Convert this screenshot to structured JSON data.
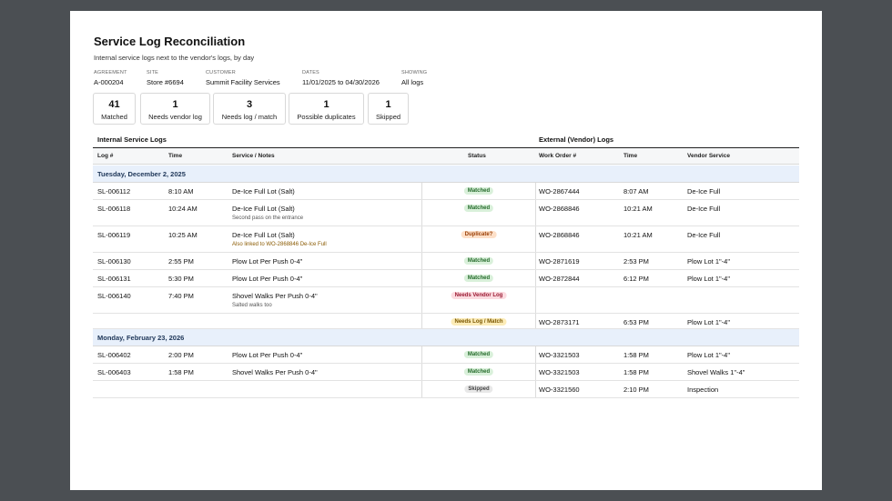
{
  "page": {
    "title": "Service Log Reconciliation",
    "subtitle": "Internal service logs next to the vendor's logs, by day"
  },
  "meta": [
    {
      "label": "Agreement",
      "value": "A-000204"
    },
    {
      "label": "Site",
      "value": "Store #6694"
    },
    {
      "label": "Customer",
      "value": "Summit Facility Services"
    },
    {
      "label": "Dates",
      "value": "11/01/2025 to 04/30/2026"
    },
    {
      "label": "Showing",
      "value": "All logs"
    }
  ],
  "summary": [
    {
      "count": "41",
      "label": "Matched"
    },
    {
      "count": "1",
      "label": "Needs vendor log"
    },
    {
      "count": "3",
      "label": "Needs log / match"
    },
    {
      "count": "1",
      "label": "Possible duplicates"
    },
    {
      "count": "1",
      "label": "Skipped"
    }
  ],
  "sections": {
    "internal": "Internal Service Logs",
    "external": "External (Vendor) Logs"
  },
  "columns": [
    "Log #",
    "Time",
    "Service / Notes",
    "Status",
    "Work Order #",
    "Time",
    "Vendor Service"
  ],
  "days": [
    {
      "label": "Tuesday, December 2, 2025",
      "rows": [
        {
          "log": "SL-006112",
          "time": "8:10 AM",
          "service": "De-Ice Full Lot (Salt)",
          "note": "",
          "status": "Matched",
          "wo": "WO-2867444",
          "vtime": "8:07 AM",
          "vservice": "De-Ice Full"
        },
        {
          "log": "SL-006118",
          "time": "10:24 AM",
          "service": "De-Ice Full Lot (Salt)",
          "note": "Second pass on the entrance",
          "status": "Matched",
          "wo": "WO-2868846",
          "vtime": "10:21 AM",
          "vservice": "De-Ice Full"
        },
        {
          "log": "SL-006119",
          "time": "10:25 AM",
          "service": "De-Ice Full Lot (Salt)",
          "note": "Also linked to WO-2868846 De-Ice Full",
          "status": "Duplicate?",
          "wo": "WO-2868846",
          "vtime": "10:21 AM",
          "vservice": "De-Ice Full"
        },
        {
          "log": "SL-006130",
          "time": "2:55 PM",
          "service": "Plow Lot Per Push 0-4\"",
          "note": "",
          "status": "Matched",
          "wo": "WO-2871619",
          "vtime": "2:53 PM",
          "vservice": "Plow Lot 1\"-4\""
        },
        {
          "log": "SL-006131",
          "time": "5:30 PM",
          "service": "Plow Lot Per Push 0-4\"",
          "note": "",
          "status": "Matched",
          "wo": "WO-2872844",
          "vtime": "6:12 PM",
          "vservice": "Plow Lot 1\"-4\""
        },
        {
          "log": "SL-006140",
          "time": "7:40 PM",
          "service": "Shovel Walks Per Push 0-4\"",
          "note": "Salted walks too",
          "status": "Needs Vendor Log",
          "wo": "",
          "vtime": "",
          "vservice": ""
        },
        {
          "log": "",
          "time": "",
          "service": "",
          "note": "",
          "status": "Needs Log / Match",
          "wo": "WO-2873171",
          "vtime": "6:53 PM",
          "vservice": "Plow Lot 1\"-4\""
        }
      ]
    },
    {
      "label": "Monday, February 23, 2026",
      "rows": [
        {
          "log": "SL-006402",
          "time": "2:00 PM",
          "service": "Plow Lot Per Push 0-4\"",
          "note": "",
          "status": "Matched",
          "wo": "WO-3321503",
          "vtime": "1:58 PM",
          "vservice": "Plow Lot 1\"-4\""
        },
        {
          "log": "SL-006403",
          "time": "1:58 PM",
          "service": "Shovel Walks Per Push 0-4\"",
          "note": "",
          "status": "Matched",
          "wo": "WO-3321503",
          "vtime": "1:58 PM",
          "vservice": "Shovel Walks 1\"-4\""
        },
        {
          "log": "",
          "time": "",
          "service": "",
          "note": "",
          "status": "Skipped",
          "wo": "WO-3321560",
          "vtime": "2:10 PM",
          "vservice": "Inspection"
        }
      ]
    }
  ]
}
